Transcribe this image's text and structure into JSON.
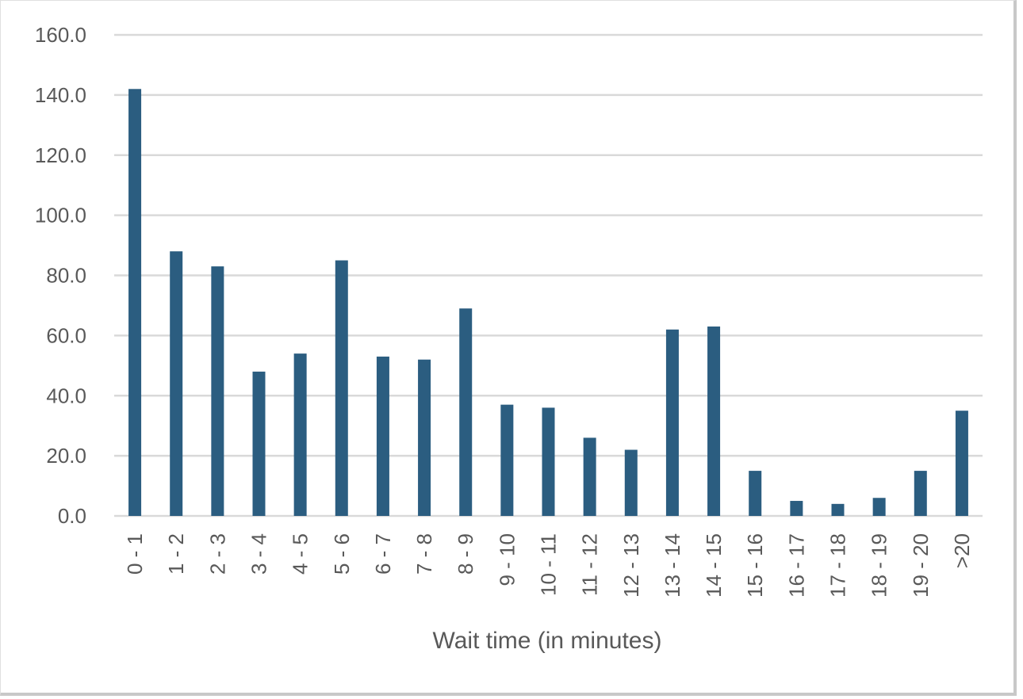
{
  "chart_data": {
    "type": "bar",
    "categories": [
      "0 - 1",
      "1 - 2",
      "2 - 3",
      "3 - 4",
      "4 - 5",
      "5 - 6",
      "6 - 7",
      "7 - 8",
      "8 - 9",
      "9 - 10",
      "10 - 11",
      "11 - 12",
      "12 - 13",
      "13 - 14",
      "14 - 15",
      "15 - 16",
      "16 - 17",
      "17 - 18",
      "18 - 19",
      "19 - 20",
      ">20"
    ],
    "values": [
      142,
      88,
      83,
      48,
      54,
      85,
      53,
      52,
      69,
      37,
      36,
      26,
      22,
      62,
      63,
      15,
      5,
      4,
      6,
      15,
      35
    ],
    "xlabel": "Wait time (in minutes)",
    "ylabel": "",
    "ylim": [
      0,
      160
    ],
    "yticks": [
      "0.0",
      "20.0",
      "40.0",
      "60.0",
      "80.0",
      "100.0",
      "120.0",
      "140.0",
      "160.0"
    ],
    "grid": true,
    "bar_color": "#2b5d80",
    "grid_color": "#d9d9d9"
  }
}
